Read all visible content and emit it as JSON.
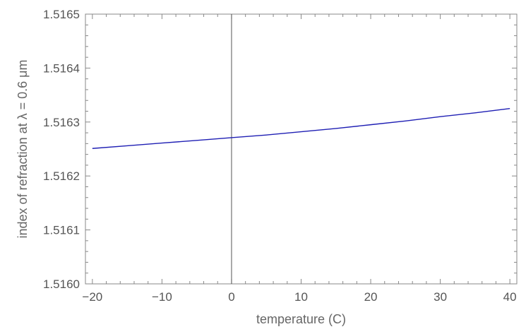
{
  "chart_data": {
    "type": "line",
    "xlabel": "temperature (C)",
    "ylabel": "index of refraction at λ = 0.6 μm",
    "xlim": [
      -21,
      41
    ],
    "ylim": [
      1.516,
      1.5165
    ],
    "x_ticks": [
      -20,
      -10,
      0,
      10,
      20,
      30,
      40
    ],
    "x_tick_labels": [
      "−20",
      "−10",
      "0",
      "10",
      "20",
      "30",
      "40"
    ],
    "y_ticks": [
      1.516,
      1.5161,
      1.5162,
      1.5163,
      1.5164,
      1.5165
    ],
    "y_tick_labels": [
      "1.5160",
      "1.5161",
      "1.5162",
      "1.5163",
      "1.5164",
      "1.5165"
    ],
    "grid": false,
    "vertical_reference_line_x": 0,
    "series": [
      {
        "color": "#1f1fb4",
        "x": [
          -20,
          -15,
          -10,
          -5,
          0,
          5,
          10,
          15,
          20,
          25,
          30,
          35,
          40
        ],
        "values": [
          1.516251,
          1.516256,
          1.516261,
          1.516266,
          1.516271,
          1.516276,
          1.516282,
          1.516288,
          1.516295,
          1.516302,
          1.51631,
          1.516317,
          1.516325
        ]
      }
    ]
  }
}
